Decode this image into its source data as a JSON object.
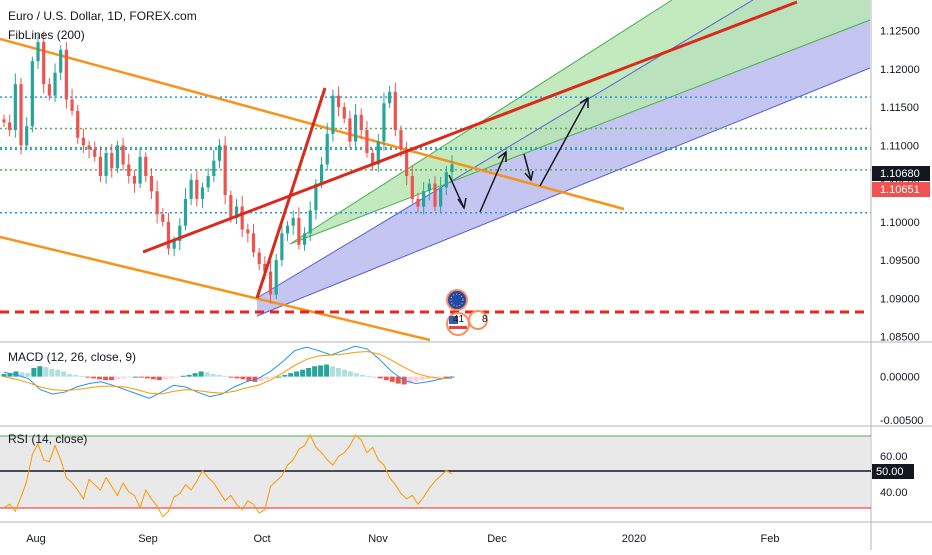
{
  "main": {
    "title": "Euro / U.S. Dollar, 1D, FOREX.com",
    "indicator": "FibLines (200)",
    "price_ticks": [
      "1.12500",
      "1.12000",
      "1.11500",
      "1.11000",
      "1.10500",
      "1.10000",
      "1.09500",
      "1.09000",
      "1.08500"
    ],
    "price_tag_black": "1.10680",
    "price_tag_red": "1.10651",
    "event_badge_count": "41",
    "event_badge_extra": "8"
  },
  "macd": {
    "title": "MACD (12, 26, close, 9)",
    "ticks": [
      "0.00000",
      "-0.00500"
    ]
  },
  "rsi": {
    "title": "RSI (14, close)",
    "ticks": [
      "60.00",
      "40.00"
    ],
    "tag": "50.00"
  },
  "time_axis": [
    "Aug",
    "Sep",
    "Oct",
    "Nov",
    "Dec",
    "2020",
    "Feb"
  ],
  "colors": {
    "up": "#26a69a",
    "down": "#ef5350",
    "channel_outer": "#a4a6e8",
    "channel_inner": "#a8dfa8",
    "trend_red": "#d92a1c",
    "orange": "#f7931a",
    "dotted_green": "#4caf50",
    "dotted_blue": "#2196f3",
    "support_red": "#e8261f",
    "macd_line": "#2196f3",
    "signal_line": "#ff9800",
    "rsi_line": "#ff9800"
  },
  "chart_data": [
    {
      "type": "candlestick",
      "title": "Euro / U.S. Dollar, 1D, FOREX.com",
      "ylim": [
        1.0843,
        1.129
      ],
      "x": [
        "Aug",
        "Sep",
        "Oct",
        "Nov",
        "Dec",
        "2020",
        "Feb"
      ],
      "closes": [
        1.113,
        1.112,
        1.118,
        1.11,
        1.1125,
        1.121,
        1.1235,
        1.118,
        1.1165,
        1.1195,
        1.1225,
        1.116,
        1.1145,
        1.111,
        1.11,
        1.1095,
        1.1085,
        1.106,
        1.109,
        1.107,
        1.11,
        1.1075,
        1.106,
        1.105,
        1.1085,
        1.106,
        1.104,
        1.101,
        1.1,
        1.0965,
        1.0975,
        1.0995,
        1.103,
        1.1055,
        1.103,
        1.1045,
        1.106,
        1.108,
        1.11,
        1.1035,
        1.1005,
        1.102,
        1.099,
        1.0985,
        1.096,
        1.0945,
        1.0935,
        1.0905,
        1.095,
        1.0985,
        1.0995,
        1.1005,
        1.097,
        1.0985,
        1.1015,
        1.105,
        1.1075,
        1.1115,
        1.1165,
        1.115,
        1.1135,
        1.1105,
        1.114,
        1.112,
        1.109,
        1.1075,
        1.1105,
        1.1155,
        1.117,
        1.112,
        1.1095,
        1.106,
        1.103,
        1.102,
        1.104,
        1.105,
        1.102,
        1.1045,
        1.1065,
        1.1075
      ],
      "annotations": {
        "dotted_green_levels": [
          1.1122,
          1.1097,
          1.1068
        ],
        "dotted_blue_levels": [
          1.1163,
          1.1095,
          1.1012
        ],
        "support_red_level": 1.088
      }
    },
    {
      "type": "histogram",
      "title": "MACD (12, 26, close, 9)",
      "ylim": [
        -0.0057,
        0.004
      ],
      "series": [
        {
          "name": "Histogram",
          "values": [
            0.0003,
            0.0004,
            0.0006,
            0.0005,
            0.0004,
            0.001,
            0.0012,
            0.0011,
            0.0009,
            0.0008,
            0.0006,
            0.0003,
            0.0002,
            0.0001,
            -0.0001,
            -0.0002,
            -0.0003,
            -0.0004,
            -0.0004,
            -0.0003,
            -0.0002,
            -0.0001,
            0.0,
            -0.0001,
            -0.0002,
            -0.0003,
            -0.0004,
            -0.0003,
            -0.0002,
            -0.0001,
            0.0001,
            0.0002,
            0.0004,
            0.0006,
            0.0005,
            0.0003,
            0.0002,
            0.0001,
            -0.0001,
            -0.0002,
            -0.0003,
            -0.0005,
            -0.0006,
            -0.0005,
            -0.0003,
            -0.0001,
            0.0,
            0.0002,
            0.0004,
            0.0006,
            0.0008,
            0.001,
            0.0012,
            0.0013,
            0.0014,
            0.0012,
            0.001,
            0.0008,
            0.0006,
            0.0004,
            0.0002,
            0.0001,
            0.0,
            -0.0002,
            -0.0004,
            -0.0006,
            -0.0008,
            -0.0009,
            -0.0008,
            -0.0006,
            -0.0004,
            -0.0003,
            -0.0002,
            -0.0001,
            -0.0001,
            0.0
          ]
        },
        {
          "name": "MACD",
          "values": [
            0.0005,
            0.0002,
            -0.0002,
            -0.0015,
            -0.002,
            -0.0018,
            -0.0012,
            -0.0008,
            -0.0006,
            -0.001,
            -0.0015,
            -0.002,
            -0.0025,
            -0.0018,
            -0.001,
            -0.0012,
            -0.0018,
            -0.0023,
            -0.002,
            -0.0012,
            -0.0006,
            -0.0002,
            0.0006,
            0.0017,
            0.003,
            0.0034,
            0.003,
            0.0025,
            0.003,
            0.0035,
            0.0032,
            0.002,
            0.0006,
            -0.0004,
            -0.0008,
            -0.0006,
            -0.0003,
            0.0
          ]
        },
        {
          "name": "Signal",
          "values": [
            0.0,
            -0.0003,
            -0.0007,
            -0.0012,
            -0.0015,
            -0.0016,
            -0.0015,
            -0.0013,
            -0.0011,
            -0.0011,
            -0.0012,
            -0.0015,
            -0.0019,
            -0.002,
            -0.0017,
            -0.0015,
            -0.0016,
            -0.0018,
            -0.0019,
            -0.0017,
            -0.0013,
            -0.001,
            -0.0004,
            0.0004,
            0.0013,
            0.002,
            0.0024,
            0.0025,
            0.0026,
            0.0028,
            0.0029,
            0.0026,
            0.0019,
            0.0011,
            0.0004,
            0.0,
            -0.0002,
            -0.0002
          ]
        }
      ]
    },
    {
      "type": "line",
      "title": "RSI (14, close)",
      "ylim": [
        23,
        77
      ],
      "series": [
        {
          "name": "RSI",
          "values": [
            31,
            33,
            29,
            37,
            46,
            61,
            67,
            58,
            57,
            66,
            58,
            48,
            45,
            41,
            36,
            47,
            44,
            41,
            48,
            43,
            38,
            45,
            40,
            38,
            31,
            41,
            36,
            32,
            26,
            29,
            37,
            39,
            44,
            41,
            46,
            52,
            48,
            45,
            40,
            35,
            38,
            33,
            30,
            35,
            33,
            28,
            30,
            43,
            46,
            49,
            55,
            58,
            64,
            66,
            72,
            65,
            62,
            58,
            55,
            60,
            62,
            66,
            72,
            69,
            62,
            65,
            58,
            55,
            48,
            44,
            39,
            36,
            38,
            33,
            37,
            42,
            46,
            49,
            52,
            50
          ]
        }
      ]
    }
  ]
}
